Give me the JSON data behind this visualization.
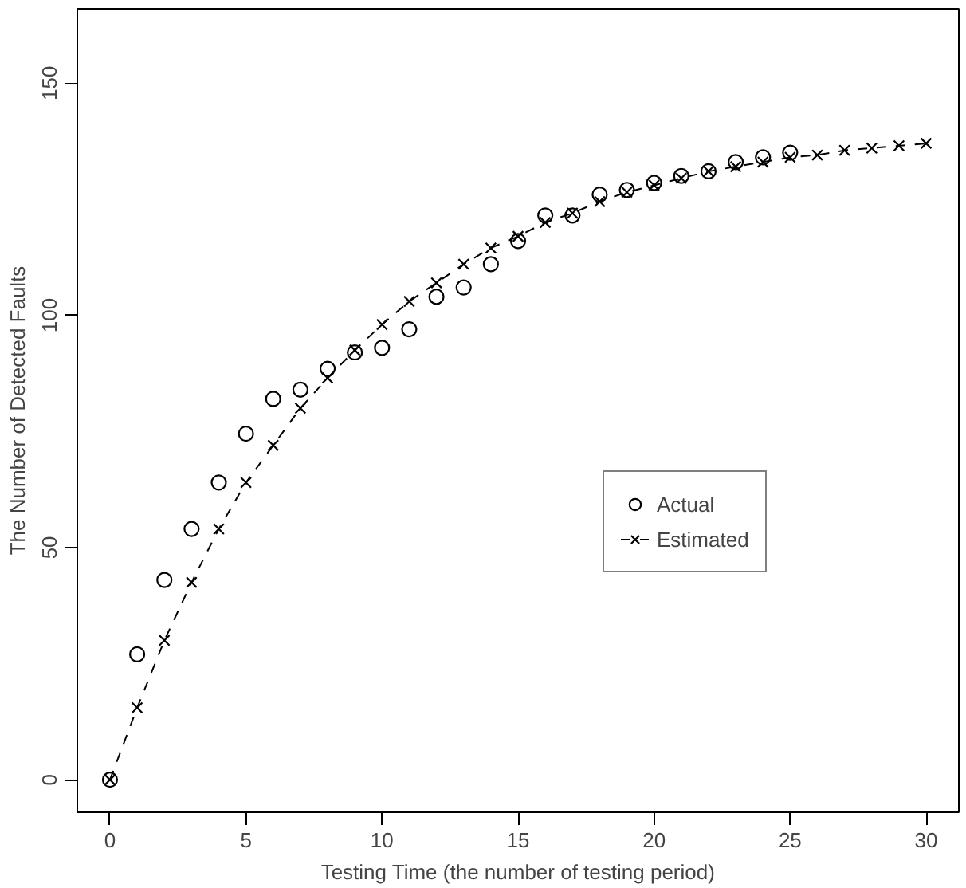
{
  "chart_data": {
    "type": "scatter",
    "xlabel": "Testing Time (the number of testing period)",
    "ylabel": "The Number of Detected Faults",
    "x": [
      0,
      1,
      2,
      3,
      4,
      5,
      6,
      7,
      8,
      9,
      10,
      11,
      12,
      13,
      14,
      15,
      16,
      17,
      18,
      19,
      20,
      21,
      22,
      23,
      24,
      25
    ],
    "series": [
      {
        "name": "Actual",
        "color": "#000000",
        "marker": "circle",
        "values": [
          0,
          27,
          43,
          54,
          64,
          74.5,
          82,
          84,
          88.5,
          92,
          93,
          97,
          104,
          106,
          111,
          116,
          121.5,
          121.5,
          126,
          127,
          128.5,
          130,
          131,
          133,
          134,
          135
        ]
      },
      {
        "name": "Estimated",
        "color": "#000000",
        "type": "line",
        "marker": "cross",
        "line_style": "dashed",
        "x": [
          0,
          1,
          2,
          3,
          4,
          5,
          6,
          7,
          8,
          9,
          10,
          11,
          12,
          13,
          14,
          15,
          16,
          17,
          18,
          19,
          20,
          21,
          22,
          23,
          24,
          25,
          26,
          27,
          28,
          29,
          30
        ],
        "values": [
          0,
          15.5,
          30,
          42.5,
          54,
          64,
          72,
          80,
          86.5,
          92.5,
          98,
          103,
          107,
          111,
          114.5,
          117,
          120,
          122,
          124.5,
          126.5,
          128,
          129.5,
          131,
          132,
          133,
          134,
          134.5,
          135.5,
          136,
          136.5,
          137
        ]
      }
    ],
    "xlim": [
      -1.2,
      31.2
    ],
    "ylim": [
      -7,
      166
    ],
    "xticks": [
      0,
      5,
      10,
      15,
      20,
      25,
      30
    ],
    "yticks": [
      0,
      50,
      100,
      150
    ],
    "grid": false,
    "legend": "right"
  }
}
